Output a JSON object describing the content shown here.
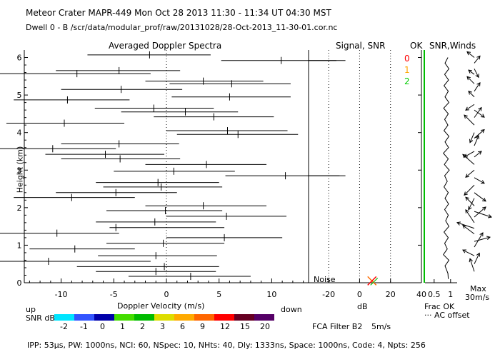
{
  "header": {
    "line1": "Meteor Crater   MAPR-449   Mon Oct 28 2013 11:30 - 11:34 UT 04:30 MST",
    "line2": "Dwell   0  -  B    /scr/data/modular_prof/raw/20131028/28-Oct-2013_11-30-01.cor.nc"
  },
  "panels": {
    "doppler_title": "Averaged Doppler Spectra",
    "signal_title": "Signal, SNR",
    "ok_title": "OK",
    "snr_winds_title": "SNR,Winds"
  },
  "ok_legend": {
    "items": [
      {
        "label": "0",
        "color": "#ff0000"
      },
      {
        "label": "1",
        "color": "#ffa500"
      },
      {
        "label": "2",
        "color": "#00cc00"
      }
    ]
  },
  "labels": {
    "ylabel": "Height (km)",
    "xlabel": "Doppler Velocity (m/s)",
    "up": "up",
    "down": "down",
    "db": "dB",
    "noise": "Noise",
    "frac_ok": "Frac OK",
    "ac_offset": "··· AC offset",
    "max": "Max",
    "max_speed": "30m/s",
    "snr_db": "SNR dB",
    "fca": "FCA Filter B2",
    "fca_speed": "5m/s",
    "footer": "IPP:  53µs,   PW: 1000ns,   NCI:  60,   NSpec: 10,  NHts: 40,   Dly: 1333ns,   Space: 1000ns,   Code: 4,   Npts: 256"
  },
  "snr_scale": {
    "labels": [
      "-2",
      "-1",
      "0",
      "1",
      "2",
      "3",
      "6",
      "9",
      "12",
      "15",
      "20"
    ],
    "colors": [
      "#00e5ff",
      "#3355ff",
      "#0000aa",
      "#44dd00",
      "#00bb00",
      "#dddd00",
      "#ffaa00",
      "#ff6600",
      "#ff0000",
      "#660022",
      "#550066"
    ]
  },
  "chart_data": {
    "type": "profile",
    "yticks": [
      0,
      1,
      2,
      3,
      4,
      5,
      6
    ],
    "ylim": [
      0,
      6.2
    ],
    "doppler": {
      "xlim": [
        -13.5,
        13.5
      ],
      "xticks": [
        -10,
        -5,
        0,
        5,
        10
      ],
      "xtick_labels": [
        "-10",
        "-5",
        "0",
        "5",
        "10"
      ],
      "segments": [
        {
          "h": 0.17,
          "x1": -3.6,
          "x2": 8.0,
          "c": 2.3
        },
        {
          "h": 0.3,
          "x1": -6.7,
          "x2": 4.7,
          "c": -1.0
        },
        {
          "h": 0.43,
          "x1": -8.5,
          "x2": 5.0,
          "c": -0.2
        },
        {
          "h": 0.57,
          "x1": -17.0,
          "x2": -1.5,
          "c": -11.2
        },
        {
          "h": 0.72,
          "x1": -6.5,
          "x2": 4.8,
          "c": -1.0
        },
        {
          "h": 0.9,
          "x1": -13.0,
          "x2": -3.0,
          "c": -8.7
        },
        {
          "h": 1.05,
          "x1": -5.7,
          "x2": 5.5,
          "c": -0.3
        },
        {
          "h": 1.2,
          "x1": 0.0,
          "x2": 11.0,
          "c": 5.5
        },
        {
          "h": 1.32,
          "x1": -16.0,
          "x2": -4.5,
          "c": -10.4
        },
        {
          "h": 1.47,
          "x1": -5.4,
          "x2": 5.5,
          "c": -4.8
        },
        {
          "h": 1.62,
          "x1": -6.7,
          "x2": 4.7,
          "c": -1.1
        },
        {
          "h": 1.77,
          "x1": 0.0,
          "x2": 11.4,
          "c": 5.7
        },
        {
          "h": 1.92,
          "x1": -5.7,
          "x2": 5.3,
          "c": -0.1
        },
        {
          "h": 2.05,
          "x1": -2.0,
          "x2": 9.5,
          "c": 3.5
        },
        {
          "h": 2.27,
          "x1": -14.5,
          "x2": -3.0,
          "c": -9.0
        },
        {
          "h": 2.4,
          "x1": -10.5,
          "x2": 1.0,
          "c": -4.8
        },
        {
          "h": 2.55,
          "x1": -6.0,
          "x2": 5.3,
          "c": -0.5
        },
        {
          "h": 2.67,
          "x1": -6.7,
          "x2": 5.0,
          "c": -0.8
        },
        {
          "h": 2.85,
          "x1": 5.6,
          "x2": 17.0,
          "c": 11.3
        },
        {
          "h": 2.97,
          "x1": -5.0,
          "x2": 6.5,
          "c": 0.7
        },
        {
          "h": 3.15,
          "x1": -2.0,
          "x2": 9.5,
          "c": 3.8
        },
        {
          "h": 3.3,
          "x1": -10.0,
          "x2": 1.3,
          "c": -4.4
        },
        {
          "h": 3.42,
          "x1": -11.5,
          "x2": -0.2,
          "c": -5.8
        },
        {
          "h": 3.57,
          "x1": -17.0,
          "x2": -4.8,
          "c": -10.8
        },
        {
          "h": 3.7,
          "x1": -10.0,
          "x2": 1.2,
          "c": -4.5
        },
        {
          "h": 3.95,
          "x1": 1.0,
          "x2": 12.5,
          "c": 6.8
        },
        {
          "h": 4.05,
          "x1": 0.0,
          "x2": 11.5,
          "c": 5.8
        },
        {
          "h": 4.25,
          "x1": -15.2,
          "x2": -4.0,
          "c": -9.7
        },
        {
          "h": 4.42,
          "x1": -1.2,
          "x2": 10.2,
          "c": 4.5
        },
        {
          "h": 4.55,
          "x1": -4.3,
          "x2": 6.8,
          "c": 1.8
        },
        {
          "h": 4.65,
          "x1": -6.8,
          "x2": 4.5,
          "c": -1.2
        },
        {
          "h": 4.87,
          "x1": -14.5,
          "x2": -3.5,
          "c": -9.4
        },
        {
          "h": 4.95,
          "x1": 0.5,
          "x2": 11.8,
          "c": 6.0
        },
        {
          "h": 5.15,
          "x1": -10.0,
          "x2": 1.5,
          "c": -4.3
        },
        {
          "h": 5.3,
          "x1": 0.3,
          "x2": 11.8,
          "c": 6.2
        },
        {
          "h": 5.37,
          "x1": -2.0,
          "x2": 9.2,
          "c": 3.5
        },
        {
          "h": 5.57,
          "x1": -16.0,
          "x2": -1.5,
          "c": -8.5
        },
        {
          "h": 5.65,
          "x1": -10.5,
          "x2": 1.3,
          "c": -4.5
        },
        {
          "h": 5.92,
          "x1": 5.2,
          "x2": 17.0,
          "c": 10.9
        },
        {
          "h": 6.07,
          "x1": -7.5,
          "x2": 4.2,
          "c": -1.6
        }
      ]
    },
    "signal": {
      "xlim": [
        -33,
        40
      ],
      "xticks": [
        -20,
        0,
        20,
        40
      ],
      "xtick_labels": [
        "-20",
        "0",
        "20",
        "40"
      ],
      "dotted": [
        -20,
        0,
        20
      ],
      "long_lines": [
        {
          "h": 5.92,
          "x1": -33,
          "x2": -15
        },
        {
          "h": 2.85,
          "x1": -33,
          "x2": -13
        }
      ],
      "marker": {
        "h": 0.05,
        "x": 8
      }
    },
    "frac_ok": {
      "xlim": [
        0.2,
        1.2
      ],
      "xticks": [
        0.5,
        1
      ],
      "xtick_labels": [
        "0.5",
        "1"
      ],
      "values": [
        {
          "h": 0.1,
          "v": 0.93
        },
        {
          "h": 0.25,
          "v": 0.92
        },
        {
          "h": 0.45,
          "v": 0.83
        },
        {
          "h": 0.6,
          "v": 0.95
        },
        {
          "h": 0.75,
          "v": 0.78
        },
        {
          "h": 0.9,
          "v": 0.9
        },
        {
          "h": 1.05,
          "v": 0.82
        },
        {
          "h": 1.2,
          "v": 0.93
        },
        {
          "h": 1.35,
          "v": 0.8
        },
        {
          "h": 1.5,
          "v": 0.95
        },
        {
          "h": 1.65,
          "v": 0.85
        },
        {
          "h": 1.8,
          "v": 0.93
        },
        {
          "h": 1.95,
          "v": 0.82
        },
        {
          "h": 2.1,
          "v": 0.94
        },
        {
          "h": 2.25,
          "v": 0.83
        },
        {
          "h": 2.4,
          "v": 0.93
        },
        {
          "h": 2.55,
          "v": 0.8
        },
        {
          "h": 2.7,
          "v": 0.9
        },
        {
          "h": 2.85,
          "v": 0.82
        },
        {
          "h": 3.0,
          "v": 0.96
        },
        {
          "h": 3.15,
          "v": 0.81
        },
        {
          "h": 3.3,
          "v": 0.93
        },
        {
          "h": 3.45,
          "v": 0.78
        },
        {
          "h": 3.6,
          "v": 0.94
        },
        {
          "h": 3.75,
          "v": 0.83
        },
        {
          "h": 3.9,
          "v": 0.95
        },
        {
          "h": 4.05,
          "v": 0.8
        },
        {
          "h": 4.2,
          "v": 0.92
        },
        {
          "h": 4.35,
          "v": 0.82
        },
        {
          "h": 4.5,
          "v": 0.93
        },
        {
          "h": 4.65,
          "v": 0.79
        },
        {
          "h": 4.8,
          "v": 0.95
        },
        {
          "h": 4.95,
          "v": 0.83
        },
        {
          "h": 5.1,
          "v": 0.93
        },
        {
          "h": 5.25,
          "v": 0.8
        },
        {
          "h": 5.4,
          "v": 0.94
        },
        {
          "h": 5.55,
          "v": 0.82
        },
        {
          "h": 5.7,
          "v": 0.95
        },
        {
          "h": 5.85,
          "v": 0.83
        },
        {
          "h": 6.0,
          "v": 0.92
        }
      ]
    },
    "winds": [
      {
        "h": 0.3,
        "u": -1.5,
        "v": 4.5
      },
      {
        "h": 0.5,
        "u": 1.8,
        "v": 3.8
      },
      {
        "h": 0.72,
        "u": -4,
        "v": 2
      },
      {
        "h": 0.95,
        "u": 3,
        "v": 5
      },
      {
        "h": 1.1,
        "u": 5.5,
        "v": 1.5
      },
      {
        "h": 1.3,
        "u": -4,
        "v": 3
      },
      {
        "h": 1.45,
        "u": -6,
        "v": 2
      },
      {
        "h": 1.6,
        "u": -3,
        "v": 4.5
      },
      {
        "h": 1.75,
        "u": 4,
        "v": 3.5
      },
      {
        "h": 1.9,
        "u": 6,
        "v": -2
      },
      {
        "h": 2.05,
        "u": -3,
        "v": 3
      },
      {
        "h": 2.25,
        "u": -2,
        "v": -4
      },
      {
        "h": 2.4,
        "u": 4,
        "v": -3
      },
      {
        "h": 2.6,
        "u": -3.5,
        "v": -3.5
      },
      {
        "h": 2.8,
        "u": 3.5,
        "v": -2
      },
      {
        "h": 3.0,
        "u": -3,
        "v": -2.5
      },
      {
        "h": 3.15,
        "u": -4,
        "v": 3.5
      },
      {
        "h": 3.35,
        "u": 2.5,
        "v": 2
      },
      {
        "h": 3.5,
        "u": -3.5,
        "v": -2
      },
      {
        "h": 3.65,
        "u": 1.5,
        "v": 3.5
      },
      {
        "h": 3.85,
        "u": 3.5,
        "v": 3
      },
      {
        "h": 4.0,
        "u": -1.5,
        "v": -3.5
      },
      {
        "h": 4.2,
        "u": -3.5,
        "v": 3.5
      },
      {
        "h": 4.4,
        "u": 2.5,
        "v": 3.5
      },
      {
        "h": 4.6,
        "u": 3.5,
        "v": -2.5
      },
      {
        "h": 4.75,
        "u": -3,
        "v": -2
      },
      {
        "h": 4.95,
        "u": -2,
        "v": 2
      },
      {
        "h": 5.1,
        "u": 2,
        "v": 3
      },
      {
        "h": 5.3,
        "u": -2.5,
        "v": 2.5
      },
      {
        "h": 5.55,
        "u": -2,
        "v": 1.5
      },
      {
        "h": 5.7,
        "u": 1.5,
        "v": -3
      },
      {
        "h": 5.85,
        "u": 2,
        "v": 2.5
      },
      {
        "h": 6.0,
        "u": -2.5,
        "v": 2
      }
    ]
  }
}
